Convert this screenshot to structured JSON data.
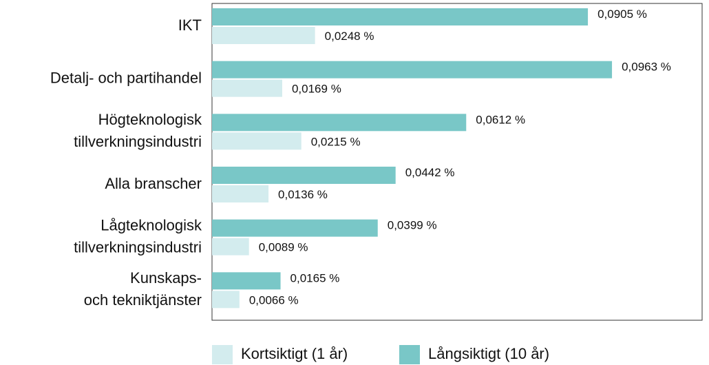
{
  "chart_data": {
    "type": "barh",
    "categories": [
      [
        "IKT"
      ],
      [
        "Detalj- och partihandel"
      ],
      [
        "Högteknologisk",
        "tillverkningsindustri"
      ],
      [
        "Alla branscher"
      ],
      [
        "Lågteknologisk",
        "tillverkningsindustri"
      ],
      [
        "Kunskaps-",
        "och tekniktjänster"
      ]
    ],
    "series": [
      {
        "name": "Kortsiktigt (1 år)",
        "color": "#d3ecee",
        "values": [
          0.0248,
          0.0169,
          0.0215,
          0.0136,
          0.0089,
          0.0066
        ],
        "value_labels": [
          "0,0248 %",
          "0,0169 %",
          "0,0215 %",
          "0,0136 %",
          "0,0089 %",
          "0,0066 %"
        ]
      },
      {
        "name": "Långsiktigt (10 år)",
        "color": "#79c7c7",
        "values": [
          0.0905,
          0.0963,
          0.0612,
          0.0442,
          0.0399,
          0.0165
        ],
        "value_labels": [
          "0,0905 %",
          "0,0963 %",
          "0,0612 %",
          "0,0442 %",
          "0,0399 %",
          "0,0165 %"
        ]
      }
    ],
    "xlim": [
      0,
      0.118
    ]
  }
}
